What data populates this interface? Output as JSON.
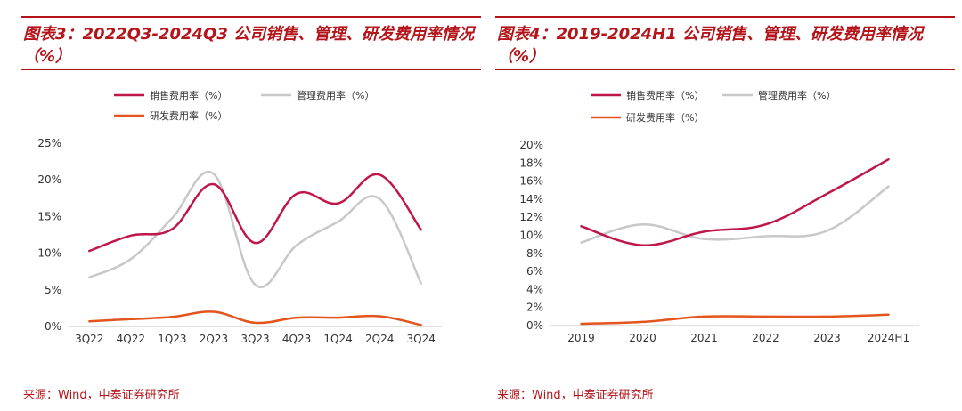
{
  "panels": [
    {
      "title": "图表3：2022Q3-2024Q3 公司销售、管理、研发费用率情况（%）",
      "source": "来源：Wind，中泰证券研究所"
    },
    {
      "title": "图表4：2019-2024H1 公司销售、管理、研发费用率情况（%）",
      "source": "来源：Wind，中泰证券研究所"
    }
  ],
  "chart_data": [
    {
      "type": "line",
      "title": "",
      "categories": [
        "3Q22",
        "4Q22",
        "1Q23",
        "2Q23",
        "3Q23",
        "4Q23",
        "1Q24",
        "2Q24",
        "3Q24"
      ],
      "ylim": [
        0,
        25
      ],
      "yticks": [
        "0%",
        "5%",
        "10%",
        "15%",
        "20%",
        "25%"
      ],
      "yticks_values": [
        0,
        5,
        10,
        15,
        20,
        25
      ],
      "grid": false,
      "legend_position": "top",
      "series": [
        {
          "name": "销售费用率（%）",
          "color": "#c0174a",
          "values": [
            10.3,
            12.4,
            13.3,
            19.4,
            11.4,
            18.1,
            16.8,
            20.7,
            13.2
          ]
        },
        {
          "name": "管理费用率（%）",
          "color": "#c8c8c8",
          "values": [
            6.7,
            9.2,
            14.8,
            20.8,
            5.7,
            11.1,
            14.3,
            17.4,
            5.9
          ]
        },
        {
          "name": "研发费用率（%）",
          "color": "#e3541e",
          "values": [
            0.7,
            1.0,
            1.3,
            2.0,
            0.5,
            1.2,
            1.2,
            1.4,
            0.2
          ]
        }
      ]
    },
    {
      "type": "line",
      "title": "",
      "categories": [
        "2019",
        "2020",
        "2021",
        "2022",
        "2023",
        "2024H1"
      ],
      "ylim": [
        0,
        20
      ],
      "yticks": [
        "0%",
        "2%",
        "4%",
        "6%",
        "8%",
        "10%",
        "12%",
        "14%",
        "16%",
        "18%",
        "20%"
      ],
      "yticks_values": [
        0,
        2,
        4,
        6,
        8,
        10,
        12,
        14,
        16,
        18,
        20
      ],
      "grid": false,
      "legend_position": "top",
      "series": [
        {
          "name": "销售费用率（%）",
          "color": "#c0174a",
          "values": [
            11.0,
            8.9,
            10.4,
            11.2,
            14.6,
            18.4
          ]
        },
        {
          "name": "管理费用率（%）",
          "color": "#c8c8c8",
          "values": [
            9.2,
            11.2,
            9.6,
            9.9,
            10.5,
            15.4
          ]
        },
        {
          "name": "研发费用率（%）",
          "color": "#e3541e",
          "values": [
            0.2,
            0.4,
            1.0,
            1.0,
            1.0,
            1.2
          ]
        }
      ]
    }
  ]
}
